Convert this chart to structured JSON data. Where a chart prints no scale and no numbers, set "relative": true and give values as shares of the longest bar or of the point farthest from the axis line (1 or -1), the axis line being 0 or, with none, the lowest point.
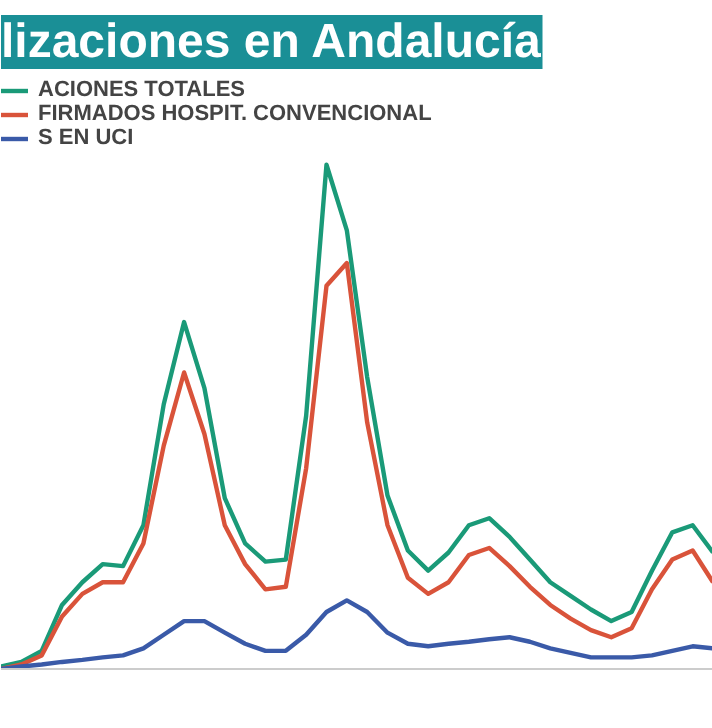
{
  "chart_data": {
    "type": "line",
    "title": "lizaciones en Andalucía",
    "relative": true,
    "legend": "top left",
    "categories": [
      null,
      null,
      null,
      null,
      null,
      null,
      null,
      null,
      null,
      null,
      null,
      null,
      null,
      null,
      null,
      null,
      null,
      null,
      null,
      null,
      null,
      null,
      null,
      null,
      null,
      null,
      null,
      null,
      null,
      null,
      null,
      null,
      null,
      null,
      null,
      null
    ],
    "series": [
      {
        "name": "ACIONES TOTALES",
        "color": "#1a9a78",
        "values": [
          0.005,
          0.014,
          0.036,
          0.127,
          0.172,
          0.208,
          0.204,
          0.285,
          0.525,
          0.688,
          0.557,
          0.339,
          0.249,
          0.213,
          0.217,
          0.502,
          1.0,
          0.87,
          0.579,
          0.344,
          0.235,
          0.195,
          0.231,
          0.285,
          0.299,
          0.262,
          0.217,
          0.172,
          0.145,
          0.118,
          0.095,
          0.113,
          0.195,
          0.271,
          0.285,
          0.231
        ]
      },
      {
        "name": "FIRMADOS HOSPIT. CONVENCIONAL",
        "color": "#d9533a",
        "values": [
          0,
          0.009,
          0.027,
          0.104,
          0.149,
          0.172,
          0.172,
          0.249,
          0.443,
          0.588,
          0.466,
          0.285,
          0.208,
          0.158,
          0.163,
          0.398,
          0.76,
          0.805,
          0.489,
          0.285,
          0.181,
          0.149,
          0.172,
          0.226,
          0.24,
          0.204,
          0.163,
          0.127,
          0.1,
          0.077,
          0.063,
          0.081,
          0.158,
          0.217,
          0.235,
          0.172
        ]
      },
      {
        "name": "S EN UCI",
        "color": "#3a5aa8",
        "values": [
          0,
          0.005,
          0.009,
          0.014,
          0.018,
          0.023,
          0.027,
          0.041,
          0.068,
          0.095,
          0.095,
          0.072,
          0.05,
          0.036,
          0.036,
          0.068,
          0.113,
          0.136,
          0.113,
          0.072,
          0.05,
          0.045,
          0.05,
          0.054,
          0.059,
          0.063,
          0.054,
          0.041,
          0.032,
          0.023,
          0.023,
          0.023,
          0.027,
          0.036,
          0.045,
          0.041
        ]
      }
    ]
  }
}
